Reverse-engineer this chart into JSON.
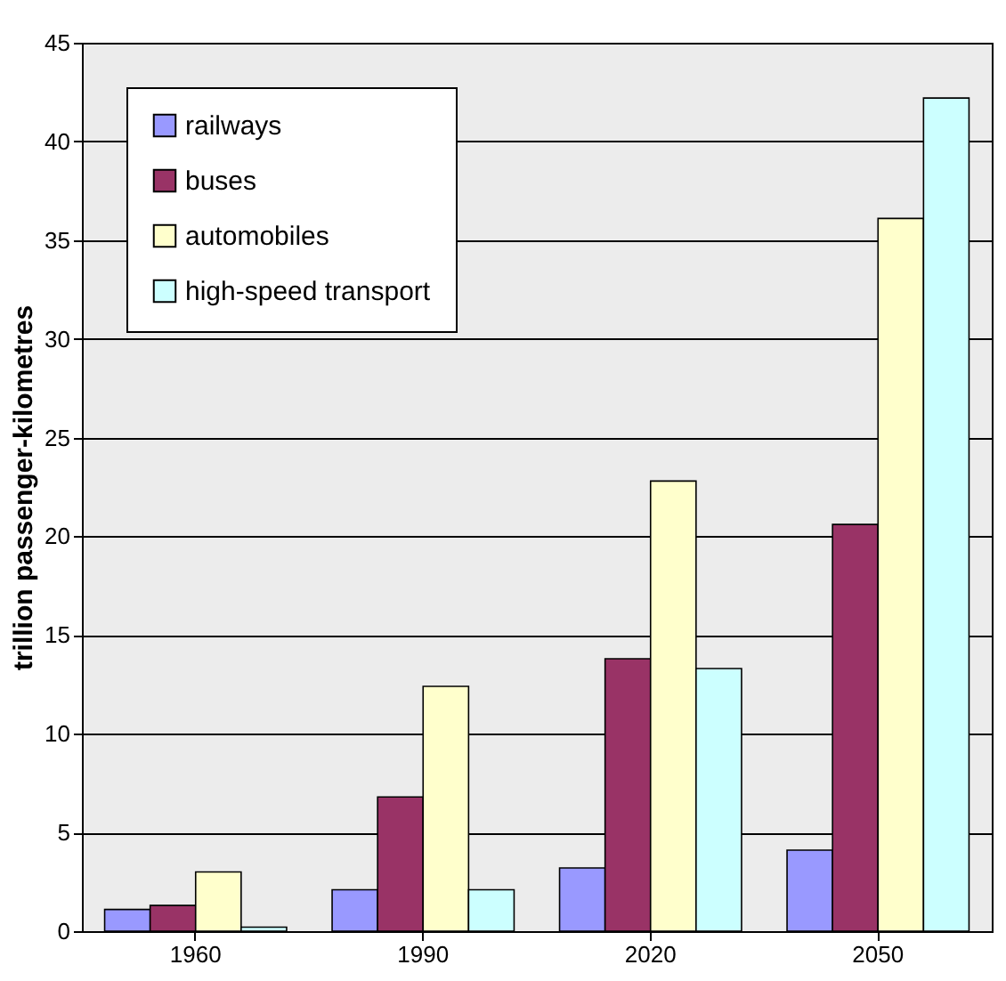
{
  "chart_data": {
    "type": "bar",
    "ylabel": "trillion passenger-kilometres",
    "categories": [
      "1960",
      "1990",
      "2020",
      "2050"
    ],
    "series": [
      {
        "name": "railways",
        "color": "#9999ff",
        "values": [
          1.1,
          2.1,
          3.2,
          4.1
        ]
      },
      {
        "name": "buses",
        "color": "#993366",
        "values": [
          1.3,
          6.8,
          13.8,
          20.6
        ]
      },
      {
        "name": "automobiles",
        "color": "#ffffcc",
        "values": [
          3.0,
          12.4,
          22.8,
          36.1
        ]
      },
      {
        "name": "high-speed transport",
        "color": "#ccffff",
        "values": [
          0.2,
          2.1,
          13.3,
          42.2
        ]
      }
    ],
    "ylim": [
      0,
      45
    ],
    "yticks": [
      0,
      5,
      10,
      15,
      20,
      25,
      30,
      35,
      40,
      45
    ],
    "grid": "y",
    "legend": "top left"
  }
}
